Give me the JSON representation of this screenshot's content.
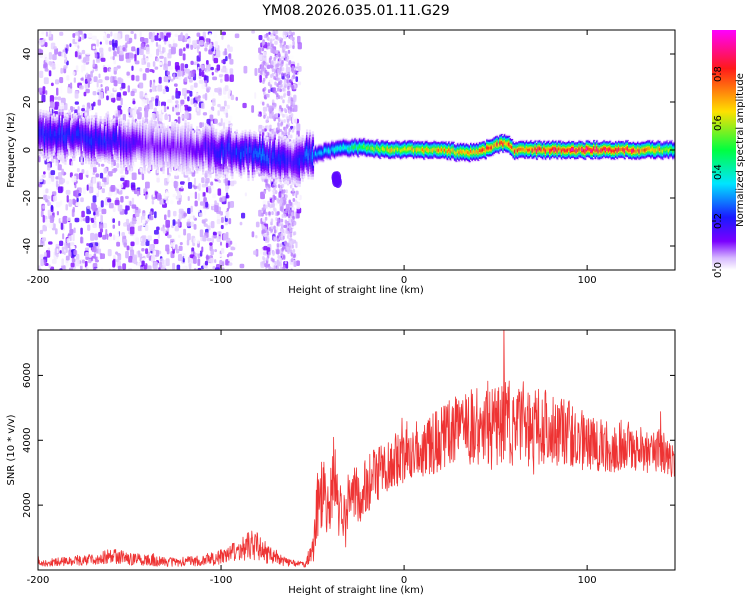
{
  "chart_data": [
    {
      "type": "heatmap",
      "title": "YM08.2026.035.01.11.G29",
      "xlabel": "Height of straight line (km)",
      "ylabel": "Frequency (Hz)",
      "xlim": [
        -200,
        148
      ],
      "ylim": [
        -50,
        50
      ],
      "x_ticks": [
        -200,
        -100,
        0,
        100
      ],
      "x_tick_labels": [
        "-200",
        "-100",
        "0",
        "100"
      ],
      "y_ticks": [
        -40,
        -20,
        0,
        20,
        40
      ],
      "y_tick_labels": [
        "-40",
        "-20",
        "0",
        "20",
        "40"
      ],
      "colorbar": {
        "label": "Normalized spectral amplitude",
        "range": [
          0,
          0.98
        ],
        "ticks": [
          0,
          0.2,
          0.4,
          0.6,
          0.8
        ],
        "tick_labels": [
          "0.0",
          "0.2",
          "0.4",
          "0.6",
          "0.8"
        ],
        "colormap": [
          "#ffffff",
          "#c9a2ff",
          "#7a00ff",
          "#1a1aff",
          "#00e5ff",
          "#00ff40",
          "#ffe000",
          "#ff1a1a",
          "#ff00ff"
        ]
      },
      "band": {
        "center_hz": [
          [
            -180,
            6
          ],
          [
            -160,
            4
          ],
          [
            -140,
            2
          ],
          [
            -120,
            1
          ],
          [
            -100,
            0
          ],
          [
            -80,
            -2
          ],
          [
            -60,
            -4
          ],
          [
            -50,
            -2
          ],
          [
            -40,
            0
          ],
          [
            -30,
            1
          ],
          [
            -20,
            1
          ],
          [
            -10,
            0
          ],
          [
            0,
            0
          ],
          [
            10,
            0
          ],
          [
            20,
            0
          ],
          [
            30,
            -1
          ],
          [
            40,
            -1
          ],
          [
            50,
            2
          ],
          [
            55,
            3
          ],
          [
            60,
            0
          ],
          [
            80,
            0
          ],
          [
            100,
            0
          ],
          [
            120,
            0
          ],
          [
            148,
            0
          ]
        ],
        "peak_amplitude": [
          [
            -180,
            0.22
          ],
          [
            -160,
            0.22
          ],
          [
            -140,
            0.12
          ],
          [
            -120,
            0.12
          ],
          [
            -100,
            0.22
          ],
          [
            -80,
            0.28
          ],
          [
            -60,
            0.2
          ],
          [
            -50,
            0.3
          ],
          [
            -40,
            0.38
          ],
          [
            -30,
            0.45
          ],
          [
            -20,
            0.55
          ],
          [
            -10,
            0.65
          ],
          [
            0,
            0.7
          ],
          [
            20,
            0.72
          ],
          [
            40,
            0.8
          ],
          [
            60,
            0.82
          ],
          [
            80,
            0.88
          ],
          [
            100,
            0.9
          ],
          [
            120,
            0.9
          ],
          [
            140,
            0.7
          ],
          [
            148,
            0.5
          ]
        ]
      },
      "blob": {
        "x": -37,
        "y": -12,
        "amplitude": 0.15
      }
    },
    {
      "type": "line",
      "title": "",
      "xlabel": "Height of straight line (km)",
      "ylabel": "SNR (10 * v/v)",
      "xlim": [
        -200,
        148
      ],
      "ylim": [
        0,
        7400
      ],
      "x_ticks": [
        -200,
        -100,
        0,
        100
      ],
      "x_tick_labels": [
        "-200",
        "-100",
        "0",
        "100"
      ],
      "y_ticks": [
        2000,
        4000,
        6000
      ],
      "y_tick_labels": [
        "2000",
        "4000",
        "6000"
      ],
      "color": "#ee3333",
      "series": [
        {
          "x": [
            -200,
            -190,
            -180,
            -170,
            -160,
            -150,
            -140,
            -130,
            -120,
            -110,
            -100,
            -90,
            -85,
            -80,
            -75,
            -70,
            -65,
            -60,
            -55,
            -50,
            -48,
            -45,
            -42,
            -40,
            -38,
            -35,
            -32,
            -30,
            -25,
            -20,
            -15,
            -10,
            -5,
            0,
            5,
            10,
            15,
            20,
            25,
            30,
            35,
            40,
            45,
            50,
            55,
            60,
            65,
            70,
            75,
            80,
            85,
            90,
            95,
            100,
            105,
            110,
            115,
            120,
            125,
            130,
            135,
            140,
            145,
            148
          ],
          "values": [
            200,
            250,
            280,
            320,
            450,
            350,
            300,
            250,
            250,
            300,
            400,
            600,
            750,
            800,
            500,
            350,
            250,
            200,
            150,
            500,
            1800,
            2600,
            1800,
            2400,
            3000,
            1800,
            1500,
            2400,
            2300,
            2600,
            2900,
            3100,
            3400,
            3400,
            3800,
            3600,
            3900,
            4000,
            4300,
            4300,
            4400,
            4400,
            4600,
            4100,
            4800,
            4300,
            4600,
            4000,
            4600,
            4200,
            4400,
            4200,
            4000,
            4000,
            3900,
            3800,
            3800,
            3900,
            3800,
            3700,
            3600,
            3700,
            3400,
            3200
          ],
          "noise_amplitude": [
            100,
            120,
            150,
            180,
            250,
            200,
            170,
            150,
            150,
            170,
            250,
            350,
            450,
            500,
            300,
            200,
            150,
            120,
            100,
            400,
            1100,
            1300,
            1000,
            1200,
            1300,
            1000,
            900,
            900,
            900,
            900,
            900,
            900,
            900,
            900,
            900,
            900,
            1000,
            1000,
            1000,
            1100,
            1100,
            1300,
            1300,
            1300,
            1400,
            1300,
            1300,
            1200,
            1300,
            1200,
            1100,
            1000,
            1000,
            900,
            900,
            800,
            800,
            800,
            700,
            700,
            700,
            700,
            600,
            500
          ]
        }
      ]
    }
  ]
}
